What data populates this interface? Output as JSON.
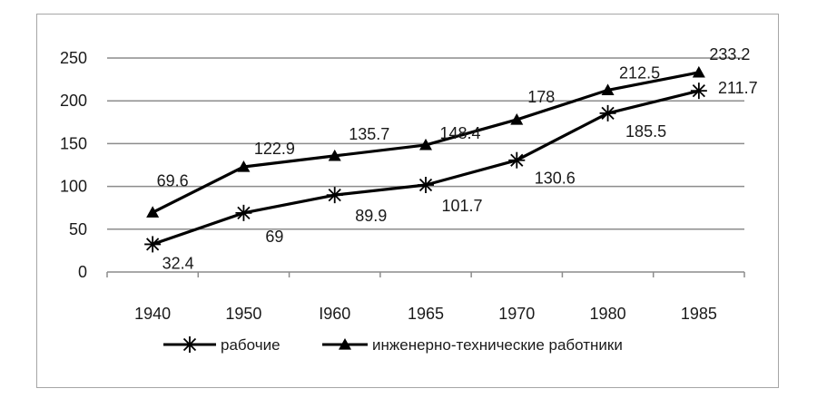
{
  "chart_data": {
    "type": "line",
    "categories": [
      "1940",
      "1950",
      "I960",
      "1965",
      "1970",
      "1980",
      "1985"
    ],
    "ylim": [
      0,
      250
    ],
    "yticks": [
      "0",
      "50",
      "100",
      "150",
      "200",
      "250"
    ],
    "grid": true,
    "legend_position": "bottom",
    "series": [
      {
        "name": "рабочие",
        "marker": "asterisk",
        "color": "#000000",
        "values": [
          32.4,
          69,
          89.9,
          101.7,
          130.6,
          185.5,
          211.7
        ],
        "labels": [
          "32.4",
          "69",
          "89.9",
          "101.7",
          "130.6",
          "185.5",
          "211.7"
        ]
      },
      {
        "name": "инженерно-технические работники",
        "marker": "triangle",
        "color": "#000000",
        "values": [
          69.6,
          122.9,
          135.7,
          148.4,
          178,
          212.5,
          233.2
        ],
        "labels": [
          "69.6",
          "122.9",
          "135.7",
          "148.4",
          "178",
          "212.5",
          "233.2"
        ]
      }
    ]
  }
}
